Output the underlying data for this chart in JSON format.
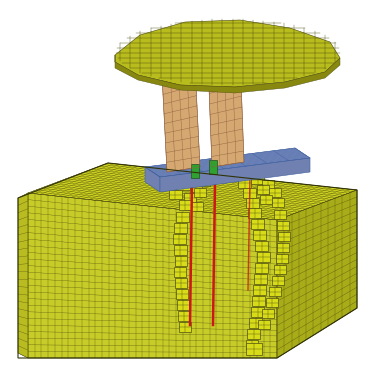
{
  "bg_color": "#ffffff",
  "grid_c": "#4a4a0a",
  "parapet_top": "#ccd020",
  "parapet_front": "#c8cc28",
  "parapet_right": "#a8ac18",
  "parapet_left_end": "#b8bc20",
  "rail_head_top": "#b8bc1c",
  "rail_head_under": "#888810",
  "rail_web": "#d4a870",
  "rail_web_grid": "#906040",
  "baseplate_top": "#8898c8",
  "baseplate_front": "#7080b0",
  "baseplate_grid": "#4060a0",
  "bolt_color": "#30a030",
  "frac_color": "#d8dc18",
  "frac_edge": "#505010",
  "red_color": "#cc1818",
  "figsize": [
    3.71,
    3.72
  ],
  "dpi": 100
}
